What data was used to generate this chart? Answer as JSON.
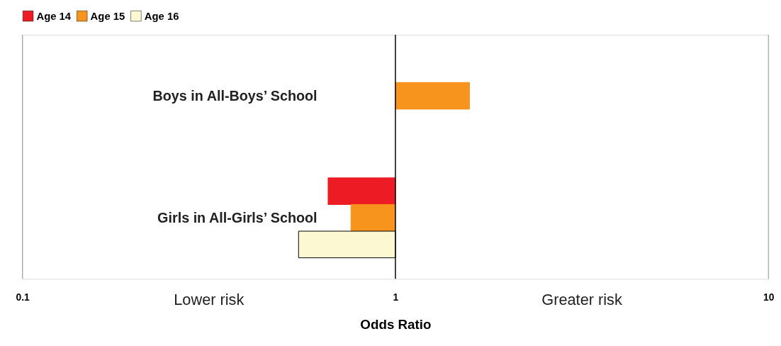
{
  "chart_data": {
    "type": "bar",
    "orientation": "horizontal",
    "categories": [
      "Boys in All-Boys’ School",
      "Girls in All-Girls’ School"
    ],
    "series": [
      {
        "name": "Age 14",
        "color": "#ed1c24",
        "values": [
          null,
          -0.34
        ],
        "base": [
          null,
          1
        ]
      },
      {
        "name": "Age 15",
        "color": "#f7941d",
        "values": [
          0.58,
          -0.24
        ],
        "base": [
          1,
          1
        ]
      },
      {
        "name": "Age 16",
        "color": "#fcf8d2",
        "values": [
          null,
          -0.45
        ],
        "base": [
          null,
          1
        ]
      }
    ],
    "xlabel": "Odds Ratio",
    "log": "x",
    "xlim": [
      0.1,
      10
    ],
    "xticks": [
      0.1,
      1,
      10
    ],
    "legend": "top",
    "ref_lines": [
      {
        "axis": "x",
        "value": 1,
        "color": "#000000"
      }
    ],
    "annotations": [
      "Lower risk",
      "Greater risk"
    ]
  }
}
